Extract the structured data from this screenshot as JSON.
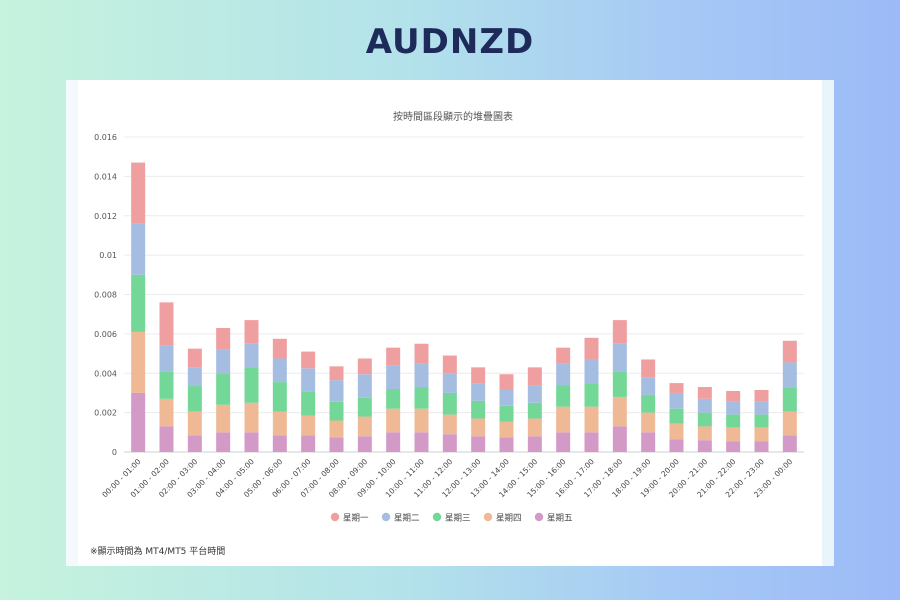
{
  "page": {
    "title": "AUDNZD"
  },
  "footnote": "※顯示時間為 MT4/MT5 平台時間",
  "chart_data": {
    "type": "bar",
    "stacked": true,
    "title": "按時間區段顯示的堆疊圖表",
    "xlabel": "",
    "ylabel": "",
    "ylim": [
      0,
      0.016
    ],
    "yticks": [
      "0",
      "0.002",
      "0.004",
      "0.006",
      "0.008",
      "0.01",
      "0.012",
      "0.014",
      "0.016"
    ],
    "legend_position": "bottom-center",
    "grid": true,
    "categories": [
      "00:00 - 01:00",
      "01:00 - 02:00",
      "02:00 - 03:00",
      "03:00 - 04:00",
      "04:00 - 05:00",
      "05:00 - 06:00",
      "06:00 - 07:00",
      "07:00 - 08:00",
      "08:00 - 09:00",
      "09:00 - 10:00",
      "10:00 - 11:00",
      "11:00 - 12:00",
      "12:00 - 13:00",
      "13:00 - 14:00",
      "14:00 - 15:00",
      "15:00 - 16:00",
      "16:00 - 17:00",
      "17:00 - 18:00",
      "18:00 - 19:00",
      "19:00 - 20:00",
      "20:00 - 21:00",
      "21:00 - 22:00",
      "22:00 - 23:00",
      "23:00 - 00:00"
    ],
    "series": [
      {
        "name": "星期五",
        "color": "#d39ac8",
        "values": [
          0.003,
          0.0013,
          0.00085,
          0.001,
          0.001,
          0.00085,
          0.00085,
          0.00075,
          0.0008,
          0.001,
          0.001,
          0.0009,
          0.0008,
          0.00075,
          0.0008,
          0.001,
          0.001,
          0.0013,
          0.001,
          0.00065,
          0.0006,
          0.00055,
          0.00055,
          0.00085
        ]
      },
      {
        "name": "星期四",
        "color": "#f0b996",
        "values": [
          0.0031,
          0.0014,
          0.0012,
          0.0014,
          0.0015,
          0.0012,
          0.001,
          0.00085,
          0.001,
          0.0012,
          0.0012,
          0.001,
          0.0009,
          0.0008,
          0.0009,
          0.0013,
          0.0013,
          0.0015,
          0.001,
          0.0008,
          0.0007,
          0.0007,
          0.0007,
          0.0012
        ]
      },
      {
        "name": "星期三",
        "color": "#72d797",
        "values": [
          0.0029,
          0.0014,
          0.0013,
          0.0016,
          0.0018,
          0.0015,
          0.0012,
          0.00095,
          0.00095,
          0.001,
          0.0011,
          0.0011,
          0.0009,
          0.0008,
          0.0008,
          0.0011,
          0.0012,
          0.0013,
          0.0009,
          0.00075,
          0.0007,
          0.00065,
          0.00065,
          0.0012
        ]
      },
      {
        "name": "星期二",
        "color": "#a6bde2",
        "values": [
          0.0026,
          0.0013,
          0.00095,
          0.0012,
          0.0012,
          0.0012,
          0.0012,
          0.0011,
          0.0012,
          0.0012,
          0.0012,
          0.001,
          0.0009,
          0.0008,
          0.0009,
          0.0011,
          0.0012,
          0.0014,
          0.0009,
          0.0008,
          0.0007,
          0.00065,
          0.00065,
          0.0013
        ]
      },
      {
        "name": "星期一",
        "color": "#ef9f9f",
        "values": [
          0.0031,
          0.0022,
          0.00095,
          0.0011,
          0.0012,
          0.001,
          0.00085,
          0.0007,
          0.0008,
          0.0009,
          0.001,
          0.0009,
          0.0008,
          0.0008,
          0.0009,
          0.0008,
          0.0011,
          0.0012,
          0.0009,
          0.0005,
          0.0006,
          0.00055,
          0.0006,
          0.0011
        ]
      }
    ],
    "legend": [
      "星期一",
      "星期二",
      "星期三",
      "星期四",
      "星期五"
    ]
  }
}
